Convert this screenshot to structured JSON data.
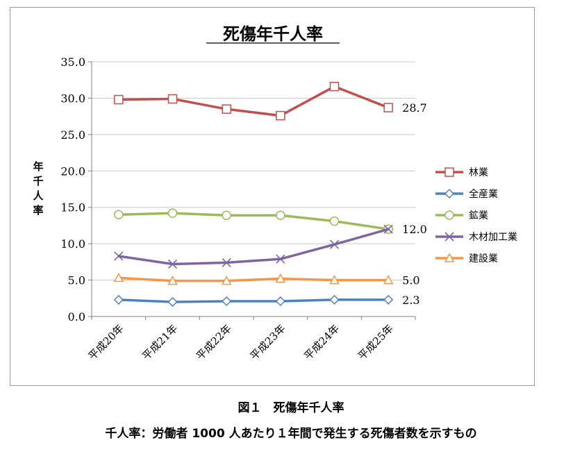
{
  "chart_data": {
    "type": "line",
    "title": "死傷年千人率",
    "ylabel": "年千人率",
    "xlabel": "",
    "categories": [
      "平成20年",
      "平成21年",
      "平成22年",
      "平成23年",
      "平成24年",
      "平成25年"
    ],
    "ylim": [
      0,
      35
    ],
    "yticks": [
      "0.0",
      "5.0",
      "10.0",
      "15.0",
      "20.0",
      "25.0",
      "30.0",
      "35.0"
    ],
    "ytick_values": [
      0,
      5,
      10,
      15,
      20,
      25,
      30,
      35
    ],
    "grid": true,
    "legend_position": "right",
    "series": [
      {
        "name": "林業",
        "color": "#c0504d",
        "marker": "square",
        "values": [
          29.8,
          29.9,
          28.5,
          27.6,
          31.6,
          28.7
        ],
        "end_label": "28.7"
      },
      {
        "name": "全産業",
        "color": "#4f81bd",
        "marker": "diamond",
        "values": [
          2.3,
          2.0,
          2.1,
          2.1,
          2.3,
          2.3
        ],
        "end_label": "2.3"
      },
      {
        "name": "鉱業",
        "color": "#9bbb59",
        "marker": "circle",
        "values": [
          14.0,
          14.2,
          13.9,
          13.9,
          13.1,
          12.0
        ],
        "end_label": "12.0"
      },
      {
        "name": "木材加工業",
        "color": "#8064a2",
        "marker": "x",
        "values": [
          8.3,
          7.2,
          7.4,
          7.9,
          9.9,
          12.0
        ],
        "end_label": null
      },
      {
        "name": "建設業",
        "color": "#f79646",
        "marker": "triangle",
        "values": [
          5.3,
          4.9,
          4.9,
          5.2,
          5.0,
          5.0
        ],
        "end_label": "5.0"
      }
    ]
  },
  "caption": {
    "figure": "図１　死傷年千人率",
    "note": "千人率：労働者 1000 人あたり１年間で発生する死傷者数を示すもの"
  }
}
